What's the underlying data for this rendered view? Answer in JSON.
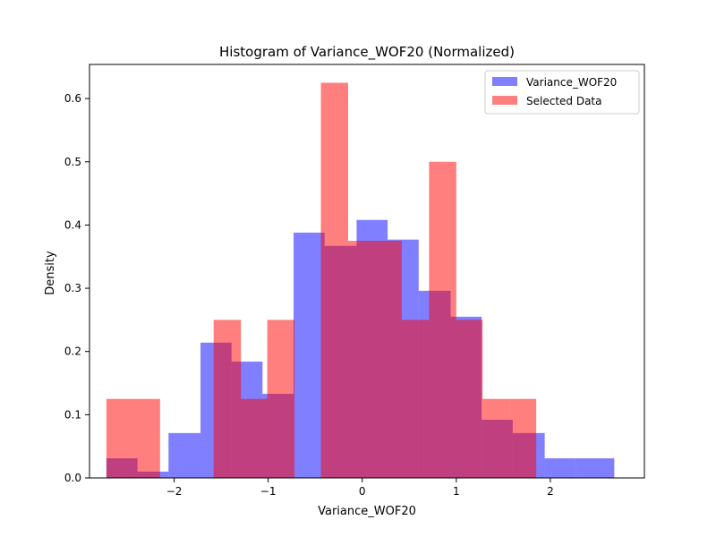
{
  "chart_data": {
    "type": "bar",
    "title": "Histogram of Variance_WOF20 (Normalized)",
    "xlabel": "Variance_WOF20",
    "ylabel": "Density",
    "xlim": [
      -2.9,
      3.0
    ],
    "ylim": [
      0,
      0.654
    ],
    "xticks": [
      -2,
      -1,
      0,
      1,
      2
    ],
    "yticks": [
      0.0,
      0.1,
      0.2,
      0.3,
      0.4,
      0.5,
      0.6
    ],
    "grid": false,
    "legend_position": "top-right",
    "series": [
      {
        "name": "Variance_WOF20",
        "color": "#0000ff",
        "opacity": 0.5,
        "bins": [
          {
            "x0": -2.72,
            "x1": -2.39,
            "value": 0.031
          },
          {
            "x0": -2.39,
            "x1": -2.06,
            "value": 0.01
          },
          {
            "x0": -2.06,
            "x1": -1.72,
            "value": 0.071
          },
          {
            "x0": -1.72,
            "x1": -1.39,
            "value": 0.214
          },
          {
            "x0": -1.39,
            "x1": -1.06,
            "value": 0.184
          },
          {
            "x0": -1.06,
            "x1": -0.73,
            "value": 0.133
          },
          {
            "x0": -0.73,
            "x1": -0.4,
            "value": 0.388
          },
          {
            "x0": -0.4,
            "x1": -0.06,
            "value": 0.367
          },
          {
            "x0": -0.06,
            "x1": 0.27,
            "value": 0.408
          },
          {
            "x0": 0.27,
            "x1": 0.6,
            "value": 0.377
          },
          {
            "x0": 0.6,
            "x1": 0.94,
            "value": 0.296
          },
          {
            "x0": 0.94,
            "x1": 1.27,
            "value": 0.255
          },
          {
            "x0": 1.27,
            "x1": 1.6,
            "value": 0.092
          },
          {
            "x0": 1.6,
            "x1": 1.94,
            "value": 0.071
          },
          {
            "x0": 1.94,
            "x1": 2.27,
            "value": 0.031
          },
          {
            "x0": 2.27,
            "x1": 2.68,
            "value": 0.031
          }
        ]
      },
      {
        "name": "Selected Data",
        "color": "#ff0000",
        "opacity": 0.5,
        "bins": [
          {
            "x0": -2.72,
            "x1": -2.15,
            "value": 0.125
          },
          {
            "x0": -2.15,
            "x1": -1.58,
            "value": 0.0
          },
          {
            "x0": -1.58,
            "x1": -1.29,
            "value": 0.25
          },
          {
            "x0": -1.29,
            "x1": -1.01,
            "value": 0.125
          },
          {
            "x0": -1.01,
            "x1": -0.72,
            "value": 0.25
          },
          {
            "x0": -0.72,
            "x1": -0.44,
            "value": 0.0
          },
          {
            "x0": -0.44,
            "x1": -0.15,
            "value": 0.625
          },
          {
            "x0": -0.15,
            "x1": 0.42,
            "value": 0.375
          },
          {
            "x0": 0.42,
            "x1": 0.71,
            "value": 0.25
          },
          {
            "x0": 0.71,
            "x1": 1.0,
            "value": 0.5
          },
          {
            "x0": 1.0,
            "x1": 1.28,
            "value": 0.25
          },
          {
            "x0": 1.28,
            "x1": 1.57,
            "value": 0.125
          },
          {
            "x0": 1.57,
            "x1": 1.85,
            "value": 0.125
          }
        ]
      }
    ]
  }
}
